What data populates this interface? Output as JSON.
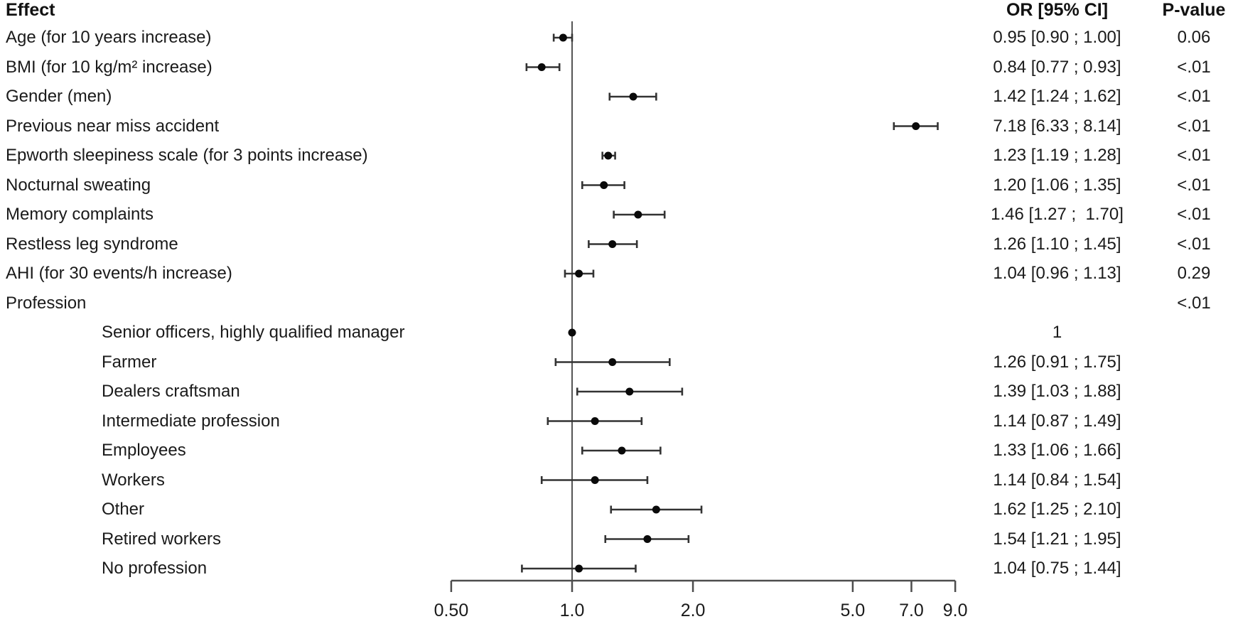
{
  "headers": {
    "effect": "Effect",
    "or_ci": "OR [95% CI]",
    "p_value": "P-value"
  },
  "colors": {
    "text": "#1a1a1a",
    "point": "#0a0a0a",
    "ci_bar": "#333333",
    "axis_line": "#4d4d4d",
    "reference_line": "#555555",
    "background": "#ffffff"
  },
  "chart_data": {
    "type": "forest",
    "x_scale": "log10",
    "x_axis_range": [
      0.5,
      9.0
    ],
    "x_ticks": [
      0.5,
      1.0,
      2.0,
      5.0,
      7.0,
      9.0
    ],
    "x_tick_labels": [
      "0.50",
      "1.0",
      "2.0",
      "5.0",
      "7.0",
      "9.0"
    ],
    "reference_line_x": 1.0,
    "grid": false,
    "legend": "none",
    "rows": [
      {
        "label": "Age (for 10 years increase)",
        "indent": false,
        "or": 0.95,
        "lo": 0.9,
        "hi": 1.0,
        "or_text": "0.95 [0.90 ; 1.00]",
        "p": "0.06"
      },
      {
        "label": "BMI (for 10 kg/m² increase)",
        "indent": false,
        "or": 0.84,
        "lo": 0.77,
        "hi": 0.93,
        "or_text": "0.84 [0.77 ; 0.93]",
        "p": "<.01"
      },
      {
        "label": "Gender (men)",
        "indent": false,
        "or": 1.42,
        "lo": 1.24,
        "hi": 1.62,
        "or_text": "1.42 [1.24 ; 1.62]",
        "p": "<.01"
      },
      {
        "label": "Previous near miss accident",
        "indent": false,
        "or": 7.18,
        "lo": 6.33,
        "hi": 8.14,
        "or_text": "7.18 [6.33 ; 8.14]",
        "p": "<.01"
      },
      {
        "label": "Epworth sleepiness scale (for 3 points increase)",
        "indent": false,
        "or": 1.23,
        "lo": 1.19,
        "hi": 1.28,
        "or_text": "1.23 [1.19 ; 1.28]",
        "p": "<.01"
      },
      {
        "label": "Nocturnal sweating",
        "indent": false,
        "or": 1.2,
        "lo": 1.06,
        "hi": 1.35,
        "or_text": "1.20 [1.06 ; 1.35]",
        "p": "<.01"
      },
      {
        "label": "Memory complaints",
        "indent": false,
        "or": 1.46,
        "lo": 1.27,
        "hi": 1.7,
        "or_text": "1.46 [1.27 ;  1.70]",
        "p": "<.01"
      },
      {
        "label": "Restless leg syndrome",
        "indent": false,
        "or": 1.26,
        "lo": 1.1,
        "hi": 1.45,
        "or_text": "1.26 [1.10 ; 1.45]",
        "p": "<.01"
      },
      {
        "label": "AHI (for 30 events/h increase)",
        "indent": false,
        "or": 1.04,
        "lo": 0.96,
        "hi": 1.13,
        "or_text": "1.04 [0.96 ; 1.13]",
        "p": "0.29"
      },
      {
        "label": "Profession",
        "indent": false,
        "or": null,
        "lo": null,
        "hi": null,
        "or_text": "",
        "p": "<.01"
      },
      {
        "label": "Senior officers, highly qualified manager",
        "indent": true,
        "or": 1.0,
        "lo": null,
        "hi": null,
        "or_text": "1",
        "p": ""
      },
      {
        "label": "Farmer",
        "indent": true,
        "or": 1.26,
        "lo": 0.91,
        "hi": 1.75,
        "or_text": "1.26 [0.91 ; 1.75]",
        "p": ""
      },
      {
        "label": "Dealers craftsman",
        "indent": true,
        "or": 1.39,
        "lo": 1.03,
        "hi": 1.88,
        "or_text": "1.39 [1.03 ; 1.88]",
        "p": ""
      },
      {
        "label": "Intermediate profession",
        "indent": true,
        "or": 1.14,
        "lo": 0.87,
        "hi": 1.49,
        "or_text": "1.14 [0.87 ; 1.49]",
        "p": ""
      },
      {
        "label": "Employees",
        "indent": true,
        "or": 1.33,
        "lo": 1.06,
        "hi": 1.66,
        "or_text": "1.33 [1.06 ; 1.66]",
        "p": ""
      },
      {
        "label": "Workers",
        "indent": true,
        "or": 1.14,
        "lo": 0.84,
        "hi": 1.54,
        "or_text": "1.14 [0.84 ; 1.54]",
        "p": ""
      },
      {
        "label": "Other",
        "indent": true,
        "or": 1.62,
        "lo": 1.25,
        "hi": 2.1,
        "or_text": "1.62 [1.25 ; 2.10]",
        "p": ""
      },
      {
        "label": "Retired workers",
        "indent": true,
        "or": 1.54,
        "lo": 1.21,
        "hi": 1.95,
        "or_text": "1.54 [1.21 ; 1.95]",
        "p": ""
      },
      {
        "label": "No profession",
        "indent": true,
        "or": 1.04,
        "lo": 0.75,
        "hi": 1.44,
        "or_text": "1.04 [0.75 ; 1.44]",
        "p": ""
      }
    ]
  }
}
